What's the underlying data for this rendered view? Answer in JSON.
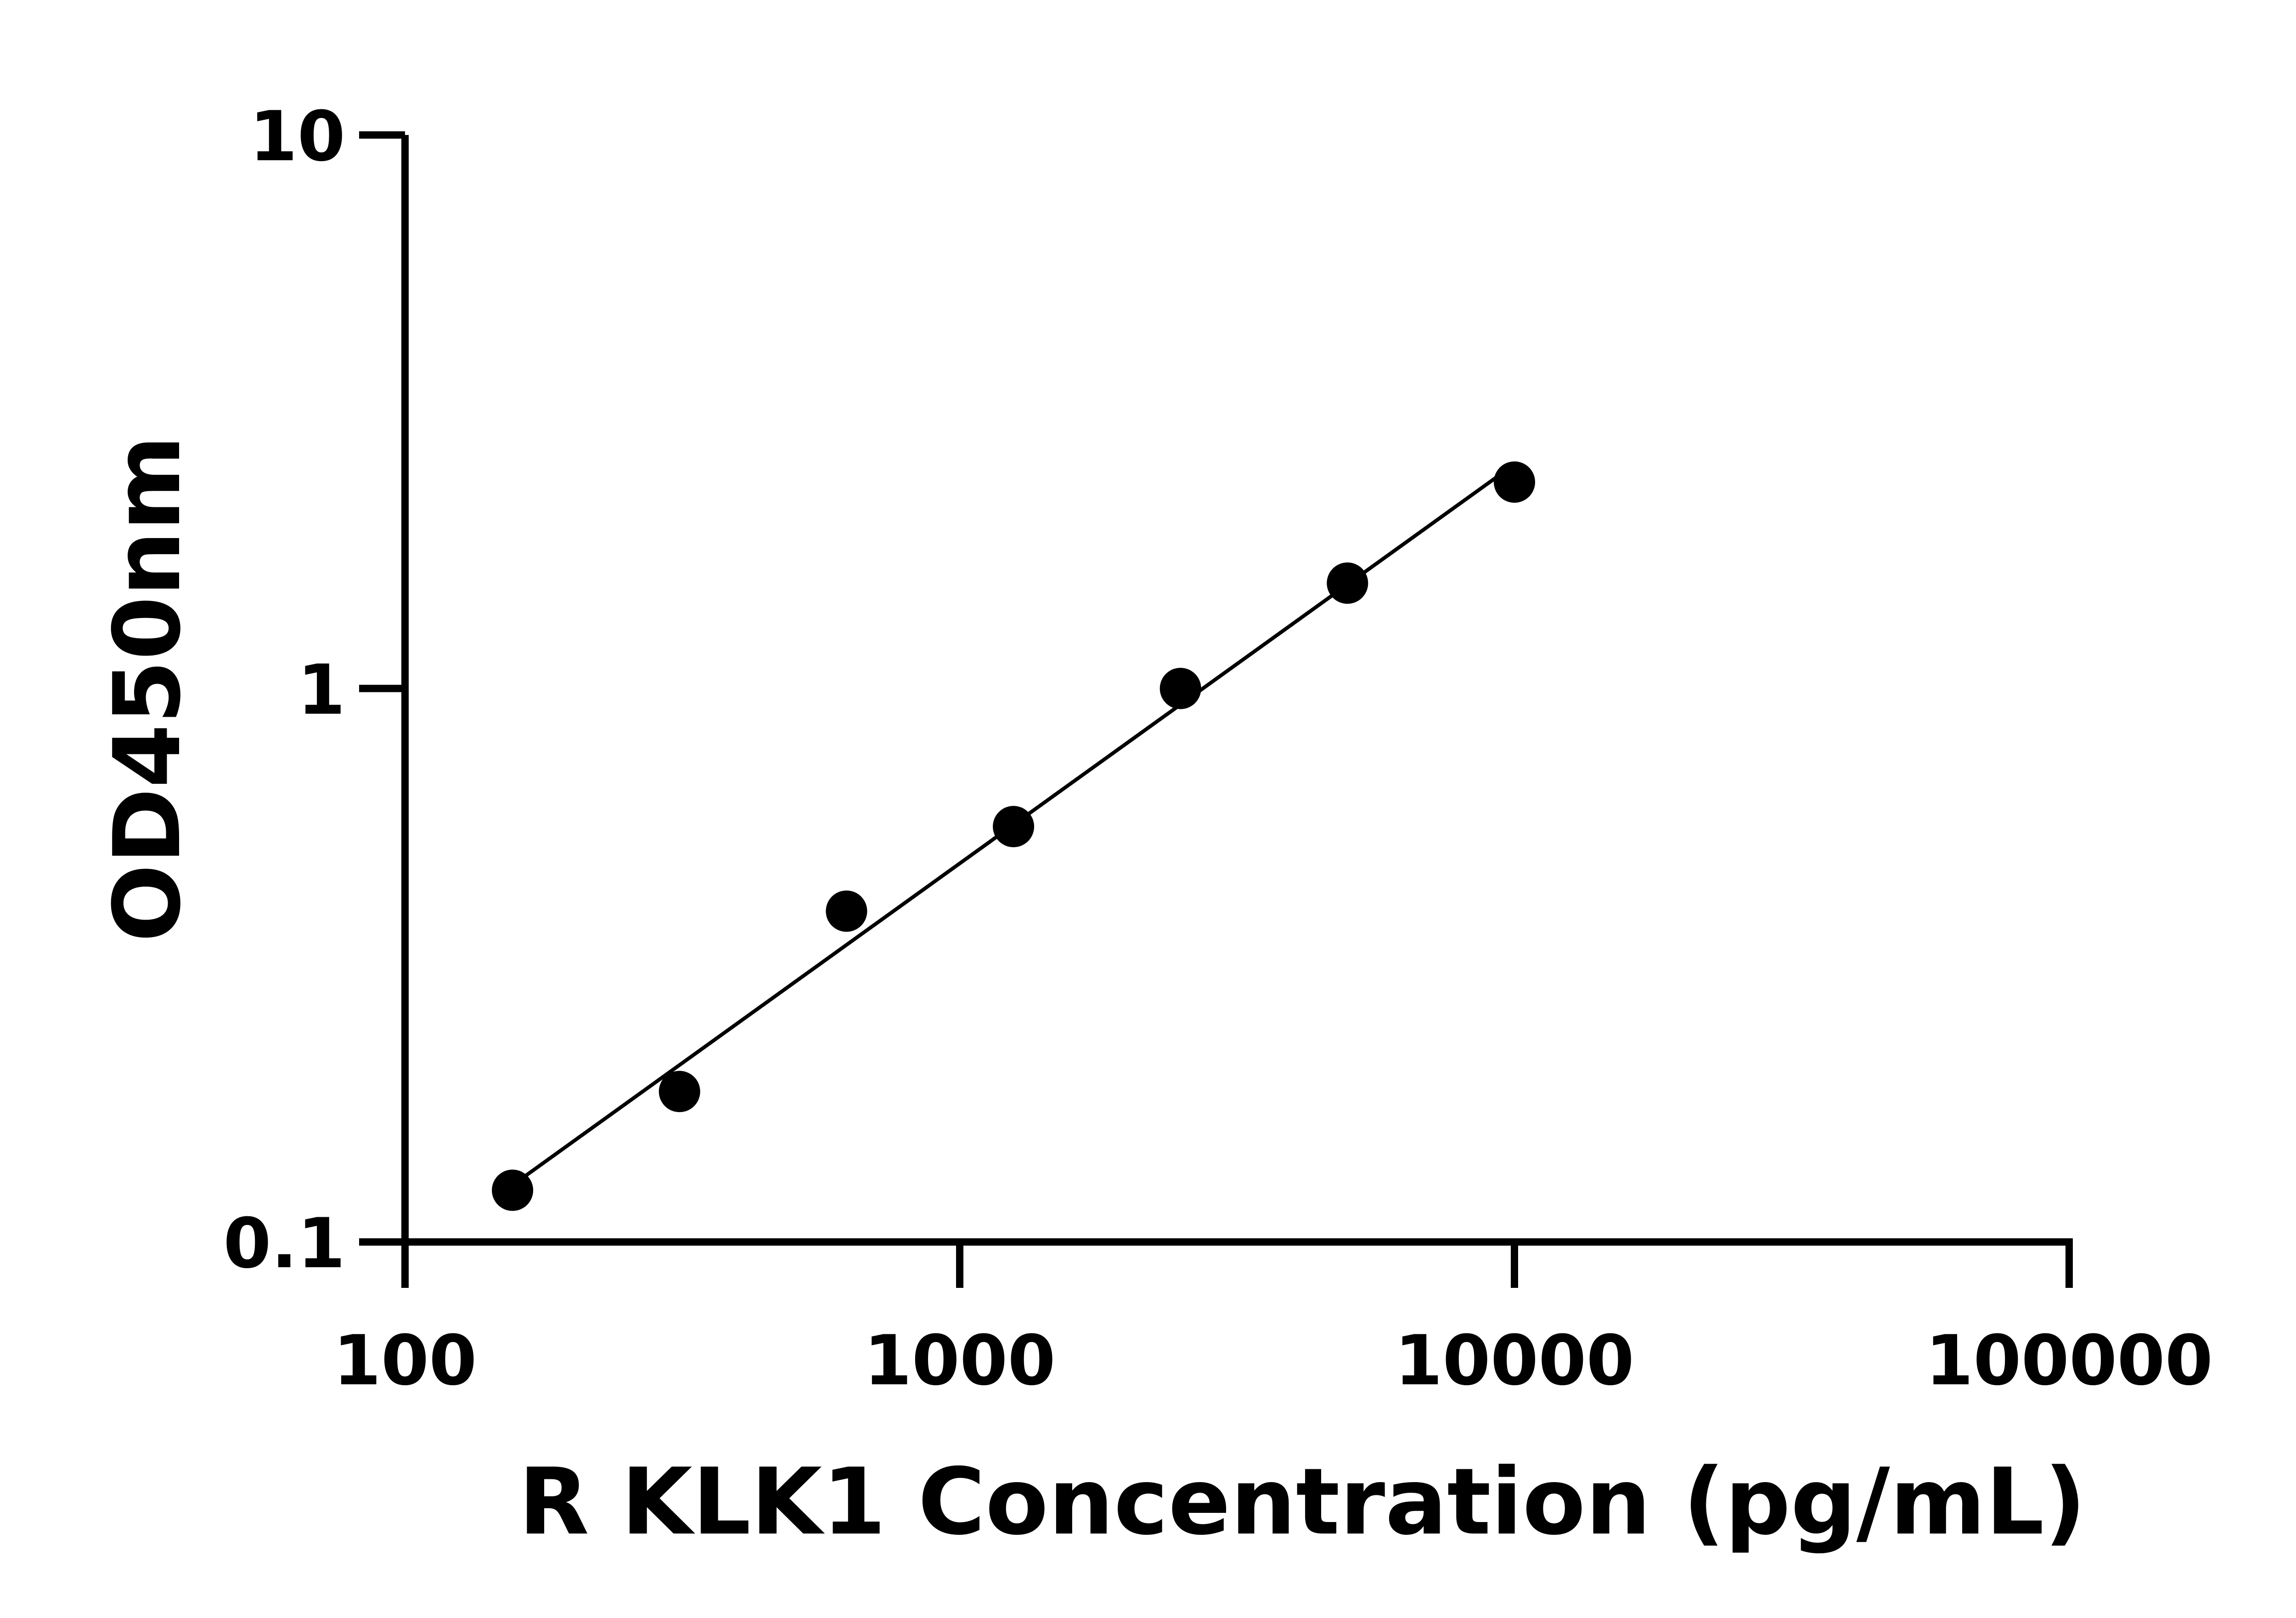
{
  "chart_data": {
    "type": "scatter",
    "title": "",
    "xlabel": "R KLK1 Concentration (pg/mL)",
    "ylabel": "OD450nm",
    "x_scale": "log",
    "y_scale": "log",
    "xlim": [
      100,
      100000
    ],
    "ylim": [
      0.1,
      10
    ],
    "x_ticks": [
      "100",
      "1000",
      "10000",
      "100000"
    ],
    "y_ticks": [
      "0.1",
      "1",
      "10"
    ],
    "grid": false,
    "fit_line": true,
    "color": "#000000",
    "x": [
      156.25,
      312.5,
      625,
      1250,
      2500,
      5000,
      10000
    ],
    "y": [
      0.124,
      0.187,
      0.396,
      0.563,
      1.0,
      1.55,
      2.36
    ]
  }
}
